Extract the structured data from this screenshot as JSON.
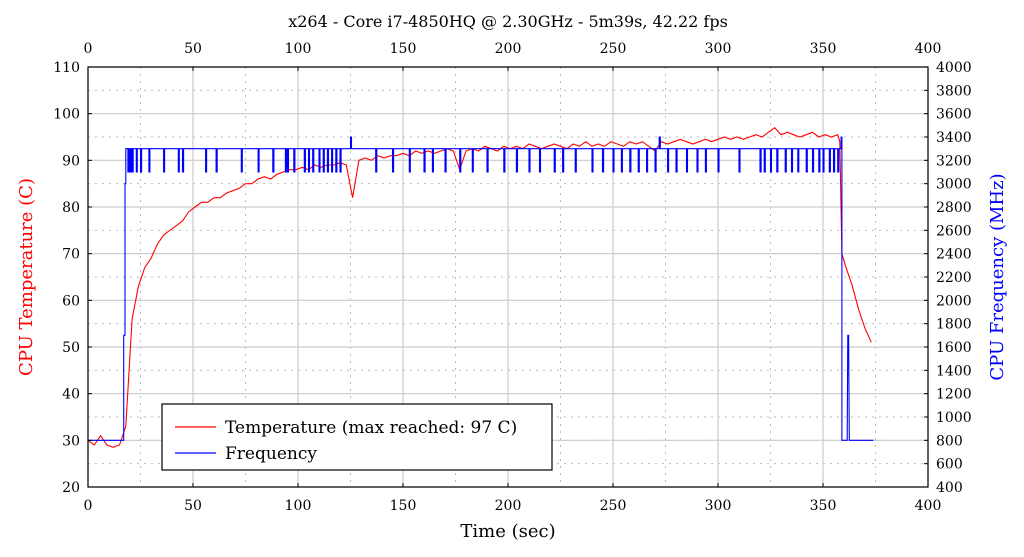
{
  "chart_data": {
    "type": "line",
    "title": "x264 - Core i7-4850HQ @ 2.30GHz - 5m39s, 42.22 fps",
    "xlabel": "Time (sec)",
    "ylabel_left": "CPU Temperature (C)",
    "ylabel_right": "CPU Frequency (MHz)",
    "xlim": [
      0,
      400
    ],
    "ylim_left": [
      20,
      110
    ],
    "ylim_right": [
      400,
      4000
    ],
    "x_ticks": [
      "0",
      "50",
      "100",
      "150",
      "200",
      "250",
      "300",
      "350",
      "400"
    ],
    "y_left_ticks": [
      "20",
      "30",
      "40",
      "50",
      "60",
      "70",
      "80",
      "90",
      "100",
      "110"
    ],
    "y_right_ticks": [
      "400",
      "600",
      "800",
      "1000",
      "1200",
      "1400",
      "1600",
      "1800",
      "2000",
      "2200",
      "2400",
      "2600",
      "2800",
      "3000",
      "3200",
      "3400",
      "3600",
      "3800",
      "4000"
    ],
    "grid": true,
    "legend_placement": "bottom-left",
    "colors": {
      "temperature": "#ff0000",
      "frequency": "#0000ff"
    },
    "series": [
      {
        "name": "Temperature (max reached: 97 C)",
        "axis": "left",
        "x": [
          0,
          3,
          6,
          9,
          12,
          15,
          18,
          21,
          24,
          27,
          30,
          33,
          36,
          39,
          42,
          45,
          48,
          51,
          54,
          57,
          60,
          63,
          66,
          69,
          72,
          75,
          78,
          81,
          84,
          87,
          90,
          93,
          96,
          99,
          102,
          105,
          108,
          111,
          114,
          117,
          120,
          123,
          126,
          129,
          132,
          135,
          138,
          141,
          144,
          147,
          150,
          153,
          156,
          159,
          162,
          165,
          168,
          171,
          174,
          177,
          180,
          183,
          186,
          189,
          192,
          195,
          198,
          201,
          204,
          207,
          210,
          213,
          216,
          219,
          222,
          225,
          228,
          231,
          234,
          237,
          240,
          243,
          246,
          249,
          252,
          255,
          258,
          261,
          264,
          267,
          270,
          273,
          276,
          279,
          282,
          285,
          288,
          291,
          294,
          297,
          300,
          303,
          306,
          309,
          312,
          315,
          318,
          321,
          324,
          327,
          330,
          333,
          336,
          339,
          342,
          345,
          348,
          351,
          354,
          357,
          358,
          359,
          361,
          364,
          367,
          370,
          373
        ],
        "values": [
          30,
          29,
          31,
          29,
          28.5,
          29,
          33,
          56,
          63,
          67,
          69,
          72,
          74,
          75,
          76,
          77,
          79,
          80,
          81,
          81,
          82,
          82,
          83,
          83.5,
          84,
          85,
          85,
          86,
          86.5,
          86,
          87,
          87.5,
          88,
          88,
          88.5,
          88,
          89,
          88.5,
          89,
          89,
          89.5,
          89,
          82,
          90,
          90.5,
          90,
          91,
          90.5,
          91,
          91,
          91.5,
          91,
          92,
          91.5,
          92,
          91.5,
          92,
          92.5,
          92,
          88,
          92,
          92.5,
          92,
          93,
          92.5,
          92,
          93,
          92.5,
          93,
          92.5,
          93.5,
          93,
          92.5,
          93,
          93.5,
          93,
          92.5,
          93.5,
          93,
          94,
          93,
          93.5,
          93,
          94,
          93.5,
          93,
          94,
          93.5,
          94,
          93,
          92,
          94,
          93.5,
          94,
          94.5,
          94,
          93.5,
          94,
          94.5,
          94,
          94.5,
          95,
          94.5,
          95,
          94.5,
          95,
          95.5,
          95,
          96,
          97,
          95.5,
          96,
          95.5,
          95,
          95.5,
          96,
          95,
          95.5,
          95,
          95.5,
          94,
          70,
          67,
          63,
          58,
          54,
          51
        ]
      },
      {
        "name": "Frequency",
        "axis": "right",
        "start_points": [
          [
            0,
            800
          ],
          [
            17,
            800
          ],
          [
            17,
            1700
          ],
          [
            17.6,
            1700
          ],
          [
            17.6,
            3000
          ],
          [
            18,
            3000
          ],
          [
            18,
            3300
          ]
        ],
        "base_value": 3300,
        "dip_value": 3100,
        "dip_times": [
          19,
          20,
          21,
          23,
          25,
          29,
          36,
          43,
          45,
          56,
          61,
          73,
          81,
          88,
          94,
          95,
          98,
          103,
          105,
          107,
          110,
          112,
          114,
          116,
          118,
          120,
          137,
          145,
          153,
          160,
          164,
          170,
          177,
          183,
          190,
          198,
          204,
          210,
          215,
          222,
          226,
          232,
          240,
          245,
          250,
          254,
          258,
          262,
          266,
          270,
          276,
          280,
          285,
          290,
          294,
          300,
          310,
          320,
          322,
          325,
          328,
          332,
          335,
          338,
          342,
          345,
          348,
          350,
          353,
          355,
          357
        ],
        "spike_value": 3400,
        "spike_times": [
          125,
          272
        ],
        "end_points": [
          [
            358.6,
            3300
          ],
          [
            358.6,
            3400
          ],
          [
            359,
            3400
          ],
          [
            359,
            800
          ],
          [
            361.5,
            800
          ],
          [
            361.8,
            1700
          ],
          [
            362.2,
            1700
          ],
          [
            362.5,
            800
          ],
          [
            374,
            800
          ]
        ]
      }
    ]
  }
}
